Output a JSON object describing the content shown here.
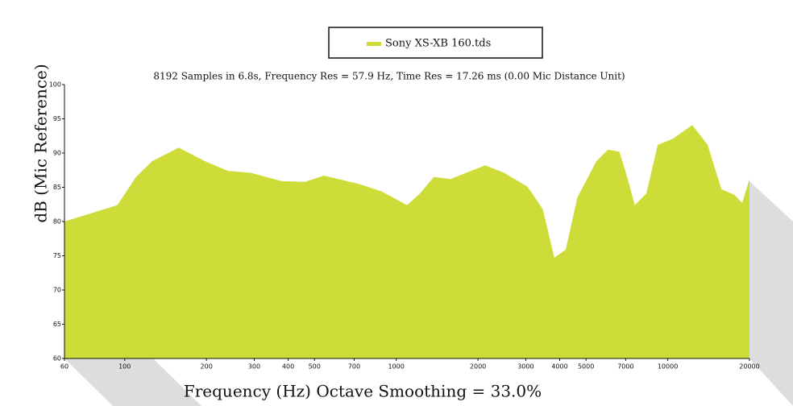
{
  "chart_data": {
    "type": "area",
    "legend_title": "Sony XS-XB 160.tds",
    "subtitle": "8192 Samples in 6.8s, Frequency Res = 57.9 Hz, Time Res = 17.26 ms (0.00 Mic Distance Unit)",
    "x_label": "Frequency (Hz) Octave Smoothing = 33.0%",
    "y_label": "dB (Mic Reference)",
    "log_x": true,
    "xlim": [
      60,
      20000
    ],
    "ylim": [
      60,
      100
    ],
    "xticks": [
      60,
      100,
      200,
      300,
      400,
      500,
      700,
      1000,
      2000,
      3000,
      4000,
      5000,
      7000,
      10000,
      20000
    ],
    "yticks": [
      60,
      65,
      70,
      75,
      80,
      85,
      90,
      95,
      100
    ],
    "x": [
      60,
      94,
      110,
      126,
      158,
      198,
      240,
      292,
      379,
      461,
      542,
      727,
      884,
      1096,
      1224,
      1375,
      1586,
      1806,
      2127,
      2502,
      3041,
      3466,
      3822,
      4210,
      4645,
      5460,
      6023,
      6637,
      7087,
      7560,
      8340,
      9190,
      10470,
      12310,
      14020,
      15770,
      17620,
      18800,
      20000
    ],
    "series": [
      {
        "name": "Sony XS-XB 160.tds",
        "color": "#cddc39",
        "values": [
          80.0,
          82.4,
          86.5,
          88.8,
          90.8,
          88.8,
          87.4,
          87.1,
          85.9,
          85.8,
          86.7,
          85.5,
          84.4,
          82.4,
          84.1,
          86.5,
          86.2,
          87.1,
          88.2,
          87.1,
          85.1,
          81.8,
          74.7,
          75.9,
          83.5,
          88.8,
          90.5,
          90.2,
          86.5,
          82.4,
          84.1,
          91.2,
          92.1,
          94.1,
          91.2,
          84.7,
          83.9,
          82.7,
          86.2
        ]
      }
    ]
  }
}
